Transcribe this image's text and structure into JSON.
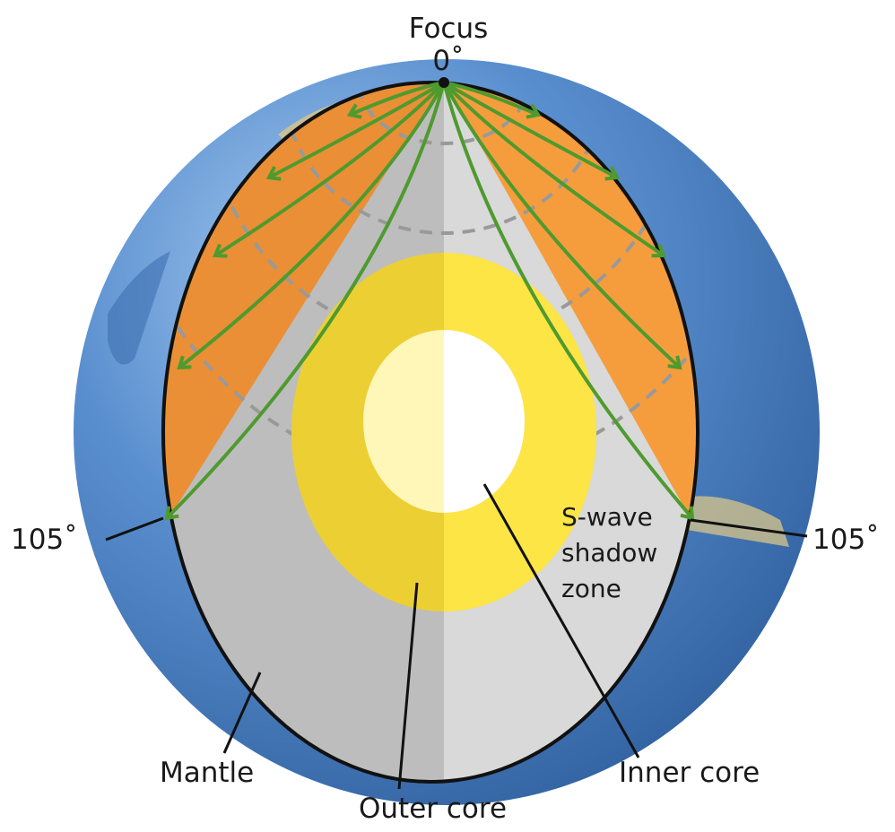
{
  "labels": {
    "focus": "Focus",
    "focus_angle": "0˚",
    "left_angle": "105˚",
    "right_angle": "105˚",
    "shadow_line1": "S-wave",
    "shadow_line2": "shadow",
    "shadow_line3": "zone",
    "mantle": "Mantle",
    "outer_core": "Outer core",
    "inner_core": "Inner core"
  },
  "colors": {
    "mantle_orange": "#f0963a",
    "mantle_gray": "#c8c8c8",
    "outer_core": "#f7e03c",
    "inner_core": "#ffffff",
    "wave_path": "#4f9a2f",
    "wavefront": "#999999",
    "ocean": "#5a8fcf"
  }
}
